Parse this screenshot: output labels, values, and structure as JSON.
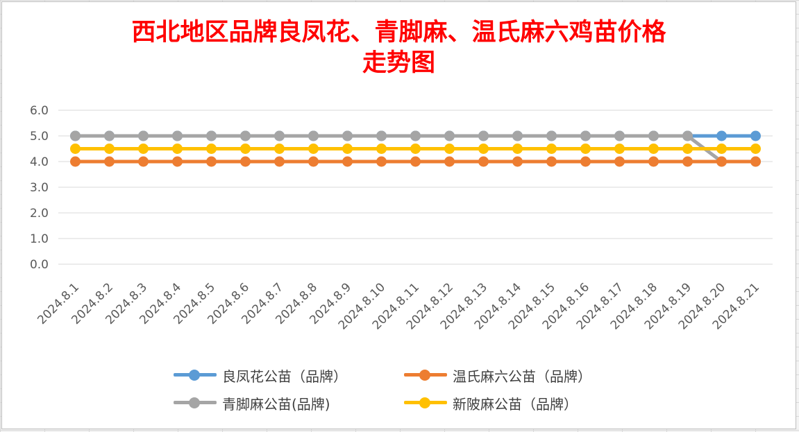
{
  "chart_data": {
    "type": "line",
    "title_lines": [
      "西北地区品牌良凤花、青脚麻、温氏麻六鸡苗价格",
      "走势图"
    ],
    "categories": [
      "2024.8.1",
      "2024.8.2",
      "2024.8.3",
      "2024.8.4",
      "2024.8.5",
      "2024.8.6",
      "2024.8.7",
      "2024.8.8",
      "2024.8.9",
      "2024.8.10",
      "2024.8.11",
      "2024.8.12",
      "2024.8.13",
      "2024.8.14",
      "2024.8.15",
      "2024.8.16",
      "2024.8.17",
      "2024.8.18",
      "2024.8.19",
      "2024.8.20",
      "2024.8.21"
    ],
    "y_ticks": [
      "0.0",
      "1.0",
      "2.0",
      "3.0",
      "4.0",
      "5.0",
      "6.0"
    ],
    "ylim": [
      0,
      6
    ],
    "grid": true,
    "legend_position": "bottom",
    "series": [
      {
        "name": "良凤花公苗（品牌）",
        "color": "#5B9BD5",
        "values": [
          5,
          5,
          5,
          5,
          5,
          5,
          5,
          5,
          5,
          5,
          5,
          5,
          5,
          5,
          5,
          5,
          5,
          5,
          5,
          5,
          5
        ]
      },
      {
        "name": "温氏麻六公苗（品牌）",
        "color": "#ED7D31",
        "values": [
          4,
          4,
          4,
          4,
          4,
          4,
          4,
          4,
          4,
          4,
          4,
          4,
          4,
          4,
          4,
          4,
          4,
          4,
          4,
          4,
          4
        ]
      },
      {
        "name": "青脚麻公苗(品牌)",
        "color": "#A5A5A5",
        "values": [
          5,
          5,
          5,
          5,
          5,
          5,
          5,
          5,
          5,
          5,
          5,
          5,
          5,
          5,
          5,
          5,
          5,
          5,
          5,
          4,
          4
        ]
      },
      {
        "name": "新陂麻公苗（品牌）",
        "color": "#FFC000",
        "values": [
          4.5,
          4.5,
          4.5,
          4.5,
          4.5,
          4.5,
          4.5,
          4.5,
          4.5,
          4.5,
          4.5,
          4.5,
          4.5,
          4.5,
          4.5,
          4.5,
          4.5,
          4.5,
          4.5,
          4.5,
          4.5
        ]
      }
    ]
  }
}
